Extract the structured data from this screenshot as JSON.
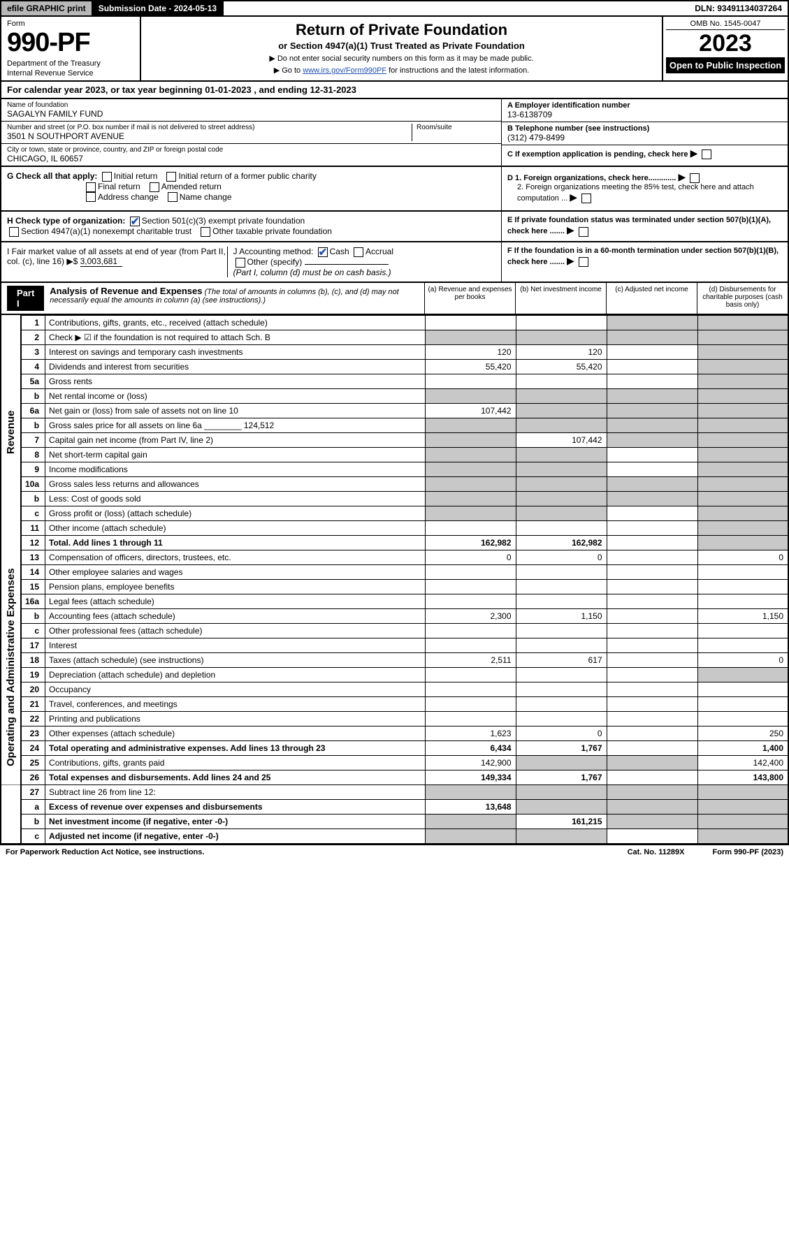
{
  "topbar": {
    "efile": "efile GRAPHIC print",
    "sub_label": "Submission Date - 2024-05-13",
    "dln": "DLN: 93491134037264"
  },
  "header": {
    "form_label": "Form",
    "form_num": "990-PF",
    "dept1": "Department of the Treasury",
    "dept2": "Internal Revenue Service",
    "title": "Return of Private Foundation",
    "subtitle": "or Section 4947(a)(1) Trust Treated as Private Foundation",
    "note1": "▶ Do not enter social security numbers on this form as it may be made public.",
    "note2_pre": "▶ Go to ",
    "note2_link": "www.irs.gov/Form990PF",
    "note2_post": " for instructions and the latest information.",
    "omb": "OMB No. 1545-0047",
    "year": "2023",
    "open": "Open to Public Inspection"
  },
  "cal_year": "For calendar year 2023, or tax year beginning 01-01-2023             , and ending 12-31-2023",
  "info": {
    "name_lbl": "Name of foundation",
    "name_val": "SAGALYN FAMILY FUND",
    "addr_lbl": "Number and street (or P.O. box number if mail is not delivered to street address)",
    "addr_val": "3501 N SOUTHPORT AVENUE",
    "room_lbl": "Room/suite",
    "city_lbl": "City or town, state or province, country, and ZIP or foreign postal code",
    "city_val": "CHICAGO, IL  60657",
    "a_hdr": "A Employer identification number",
    "a_val": "13-6138709",
    "b_hdr": "B Telephone number (see instructions)",
    "b_val": "(312) 479-8499",
    "c_hdr": "C If exemption application is pending, check here",
    "d1": "D 1. Foreign organizations, check here.............",
    "d2": "2. Foreign organizations meeting the 85% test, check here and attach computation ...",
    "e": "E  If private foundation status was terminated under section 507(b)(1)(A), check here .......",
    "f": "F  If the foundation is in a 60-month termination under section 507(b)(1)(B), check here .......",
    "g_lbl": "G Check all that apply:",
    "g_opts": [
      "Initial return",
      "Initial return of a former public charity",
      "Final return",
      "Amended return",
      "Address change",
      "Name change"
    ],
    "h_lbl": "H Check type of organization:",
    "h_opts": [
      "Section 501(c)(3) exempt private foundation",
      "Section 4947(a)(1) nonexempt charitable trust",
      "Other taxable private foundation"
    ],
    "i_lbl": "I Fair market value of all assets at end of year (from Part II, col. (c), line 16) ▶$",
    "i_val": "3,003,681",
    "j_lbl": "J Accounting method:",
    "j_opts": [
      "Cash",
      "Accrual",
      "Other (specify)"
    ],
    "j_note": "(Part I, column (d) must be on cash basis.)"
  },
  "part1": {
    "label": "Part I",
    "title": "Analysis of Revenue and Expenses",
    "title_note": "(The total of amounts in columns (b), (c), and (d) may not necessarily equal the amounts in column (a) (see instructions).)",
    "cols": {
      "a": "(a)   Revenue and expenses per books",
      "b": "(b)   Net investment income",
      "c": "(c)   Adjusted net income",
      "d": "(d)   Disbursements for charitable purposes (cash basis only)"
    }
  },
  "sides": {
    "rev": "Revenue",
    "exp": "Operating and Administrative Expenses"
  },
  "rows": [
    {
      "n": "1",
      "d": "Contributions, gifts, grants, etc., received (attach schedule)",
      "a": "",
      "b": "",
      "c": "sh",
      "dd": "sh"
    },
    {
      "n": "2",
      "d": "Check ▶ ☑ if the foundation is not required to attach Sch. B",
      "a": "sh",
      "b": "sh",
      "c": "sh",
      "dd": "sh",
      "bold_not": true
    },
    {
      "n": "3",
      "d": "Interest on savings and temporary cash investments",
      "a": "120",
      "b": "120",
      "c": "",
      "dd": "sh"
    },
    {
      "n": "4",
      "d": "Dividends and interest from securities",
      "a": "55,420",
      "b": "55,420",
      "c": "",
      "dd": "sh"
    },
    {
      "n": "5a",
      "d": "Gross rents",
      "a": "",
      "b": "",
      "c": "",
      "dd": "sh"
    },
    {
      "n": "b",
      "d": "Net rental income or (loss)",
      "a": "sh",
      "b": "sh",
      "c": "sh",
      "dd": "sh",
      "inline_box": true
    },
    {
      "n": "6a",
      "d": "Net gain or (loss) from sale of assets not on line 10",
      "a": "107,442",
      "b": "sh",
      "c": "sh",
      "dd": "sh"
    },
    {
      "n": "b",
      "d": "Gross sales price for all assets on line 6a",
      "a": "sh",
      "b": "sh",
      "c": "sh",
      "dd": "sh",
      "inline_val": "124,512"
    },
    {
      "n": "7",
      "d": "Capital gain net income (from Part IV, line 2)",
      "a": "sh",
      "b": "107,442",
      "c": "sh",
      "dd": "sh"
    },
    {
      "n": "8",
      "d": "Net short-term capital gain",
      "a": "sh",
      "b": "sh",
      "c": "",
      "dd": "sh"
    },
    {
      "n": "9",
      "d": "Income modifications",
      "a": "sh",
      "b": "sh",
      "c": "",
      "dd": "sh"
    },
    {
      "n": "10a",
      "d": "Gross sales less returns and allowances",
      "a": "sh",
      "b": "sh",
      "c": "sh",
      "dd": "sh",
      "inline_box": true
    },
    {
      "n": "b",
      "d": "Less: Cost of goods sold",
      "a": "sh",
      "b": "sh",
      "c": "sh",
      "dd": "sh",
      "inline_box": true
    },
    {
      "n": "c",
      "d": "Gross profit or (loss) (attach schedule)",
      "a": "sh",
      "b": "sh",
      "c": "",
      "dd": "sh"
    },
    {
      "n": "11",
      "d": "Other income (attach schedule)",
      "a": "",
      "b": "",
      "c": "",
      "dd": "sh"
    },
    {
      "n": "12",
      "d": "Total. Add lines 1 through 11",
      "a": "162,982",
      "b": "162,982",
      "c": "",
      "dd": "sh",
      "bold": true
    },
    {
      "n": "13",
      "d": "Compensation of officers, directors, trustees, etc.",
      "a": "0",
      "b": "0",
      "c": "",
      "dd": "0",
      "sec": "exp"
    },
    {
      "n": "14",
      "d": "Other employee salaries and wages",
      "a": "",
      "b": "",
      "c": "",
      "dd": ""
    },
    {
      "n": "15",
      "d": "Pension plans, employee benefits",
      "a": "",
      "b": "",
      "c": "",
      "dd": ""
    },
    {
      "n": "16a",
      "d": "Legal fees (attach schedule)",
      "a": "",
      "b": "",
      "c": "",
      "dd": ""
    },
    {
      "n": "b",
      "d": "Accounting fees (attach schedule)",
      "a": "2,300",
      "b": "1,150",
      "c": "",
      "dd": "1,150"
    },
    {
      "n": "c",
      "d": "Other professional fees (attach schedule)",
      "a": "",
      "b": "",
      "c": "",
      "dd": ""
    },
    {
      "n": "17",
      "d": "Interest",
      "a": "",
      "b": "",
      "c": "",
      "dd": ""
    },
    {
      "n": "18",
      "d": "Taxes (attach schedule) (see instructions)",
      "a": "2,511",
      "b": "617",
      "c": "",
      "dd": "0"
    },
    {
      "n": "19",
      "d": "Depreciation (attach schedule) and depletion",
      "a": "",
      "b": "",
      "c": "",
      "dd": "sh"
    },
    {
      "n": "20",
      "d": "Occupancy",
      "a": "",
      "b": "",
      "c": "",
      "dd": ""
    },
    {
      "n": "21",
      "d": "Travel, conferences, and meetings",
      "a": "",
      "b": "",
      "c": "",
      "dd": ""
    },
    {
      "n": "22",
      "d": "Printing and publications",
      "a": "",
      "b": "",
      "c": "",
      "dd": ""
    },
    {
      "n": "23",
      "d": "Other expenses (attach schedule)",
      "a": "1,623",
      "b": "0",
      "c": "",
      "dd": "250"
    },
    {
      "n": "24",
      "d": "Total operating and administrative expenses. Add lines 13 through 23",
      "a": "6,434",
      "b": "1,767",
      "c": "",
      "dd": "1,400",
      "bold": true
    },
    {
      "n": "25",
      "d": "Contributions, gifts, grants paid",
      "a": "142,900",
      "b": "sh",
      "c": "sh",
      "dd": "142,400"
    },
    {
      "n": "26",
      "d": "Total expenses and disbursements. Add lines 24 and 25",
      "a": "149,334",
      "b": "1,767",
      "c": "",
      "dd": "143,800",
      "bold": true
    },
    {
      "n": "27",
      "d": "Subtract line 26 from line 12:",
      "a": "sh",
      "b": "sh",
      "c": "sh",
      "dd": "sh",
      "sec": "end"
    },
    {
      "n": "a",
      "d": "Excess of revenue over expenses and disbursements",
      "a": "13,648",
      "b": "sh",
      "c": "sh",
      "dd": "sh",
      "bold": true
    },
    {
      "n": "b",
      "d": "Net investment income (if negative, enter -0-)",
      "a": "sh",
      "b": "161,215",
      "c": "sh",
      "dd": "sh",
      "bold": true
    },
    {
      "n": "c",
      "d": "Adjusted net income (if negative, enter -0-)",
      "a": "sh",
      "b": "sh",
      "c": "",
      "dd": "sh",
      "bold": true
    }
  ],
  "footer": {
    "left": "For Paperwork Reduction Act Notice, see instructions.",
    "mid": "Cat. No. 11289X",
    "right": "Form 990-PF (2023)"
  },
  "colors": {
    "shade": "#c8c8c8",
    "link": "#2050b0",
    "check": "#2050b0"
  }
}
